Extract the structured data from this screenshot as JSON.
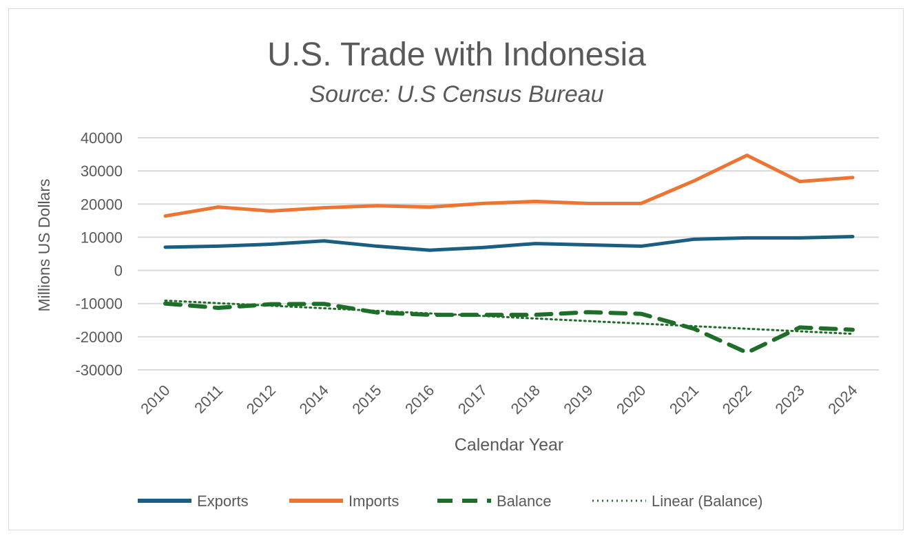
{
  "chart_data": {
    "type": "line",
    "title": "U.S. Trade with Indonesia",
    "subtitle": "Source: U.S Census Bureau",
    "xlabel": "Calendar Year",
    "ylabel": "Millions US Dollars",
    "ylim": [
      -30000,
      40000
    ],
    "yticks": [
      40000,
      30000,
      20000,
      10000,
      0,
      -10000,
      -20000,
      -30000
    ],
    "ytick_labels": [
      "40000",
      "30000",
      "20000",
      "10000",
      "0",
      "-10000",
      "-20000",
      "-30000"
    ],
    "grid": true,
    "legend_position": "bottom",
    "categories": [
      "2010",
      "2011",
      "2012",
      "2014",
      "2015",
      "2016",
      "2017",
      "2018",
      "2019",
      "2020",
      "2021",
      "2022",
      "2023",
      "2024"
    ],
    "series": [
      {
        "name": "Exports",
        "color": "#1a5e82",
        "style": "solid",
        "values": [
          7000,
          7300,
          7900,
          8900,
          7300,
          6100,
          6900,
          8100,
          7700,
          7300,
          9400,
          9800,
          9800,
          10200
        ]
      },
      {
        "name": "Imports",
        "color": "#ed7533",
        "style": "solid",
        "values": [
          16400,
          19100,
          17900,
          18900,
          19500,
          19100,
          20200,
          20800,
          20200,
          20200,
          27000,
          34700,
          26800,
          28000
        ]
      },
      {
        "name": "Balance",
        "color": "#1e6e2a",
        "style": "dashed",
        "values": [
          -10000,
          -11300,
          -10200,
          -10100,
          -12700,
          -13400,
          -13400,
          -13400,
          -12600,
          -13100,
          -17600,
          -24800,
          -17200,
          -17900
        ]
      }
    ],
    "trendline": {
      "name": "Linear (Balance)",
      "of": "Balance",
      "type": "linear",
      "color": "#1e6e2a",
      "style": "dotted"
    }
  }
}
